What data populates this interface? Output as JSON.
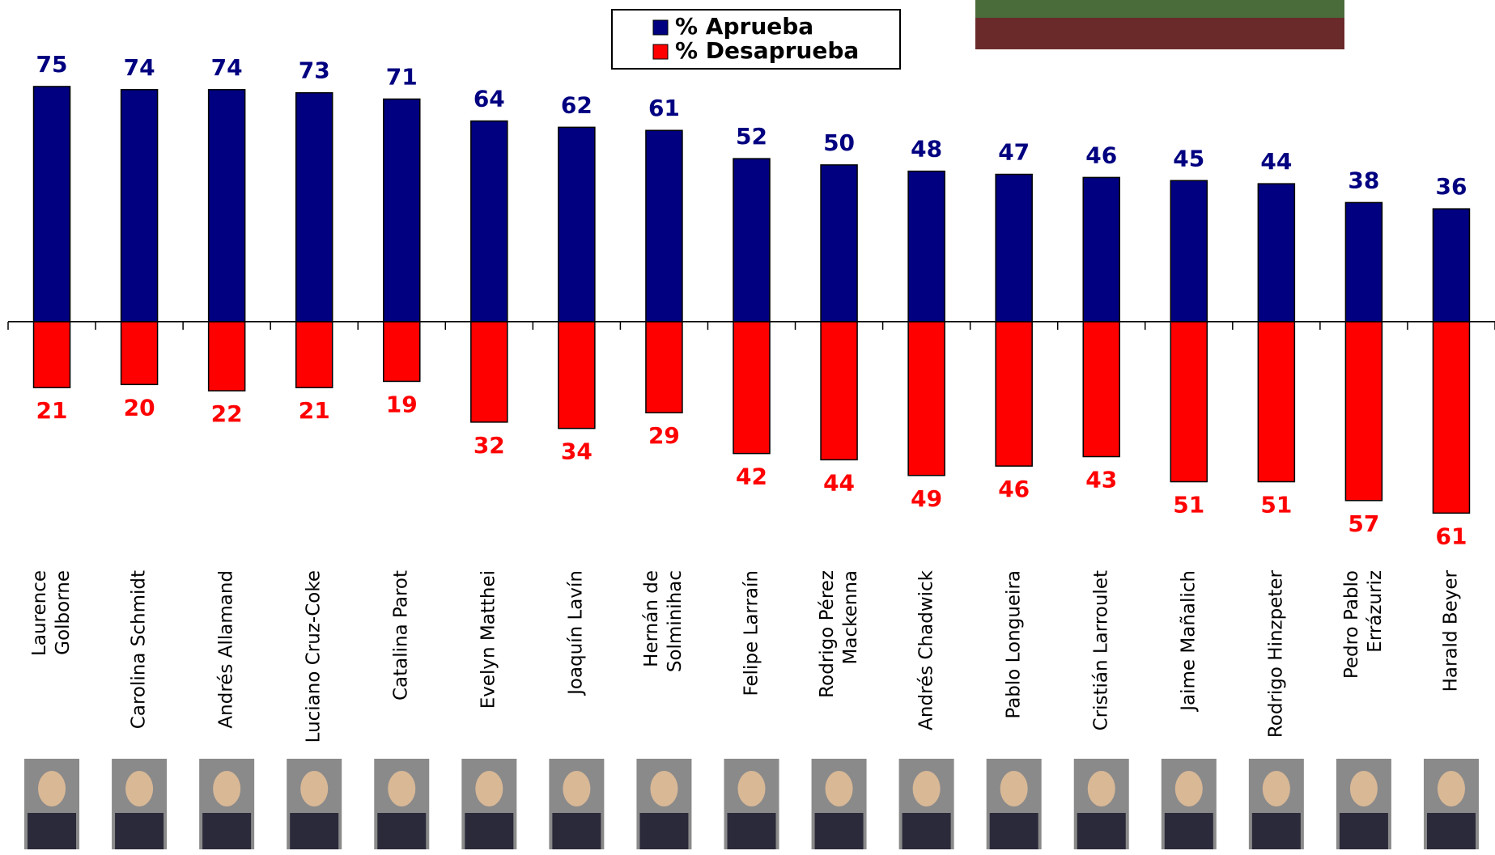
{
  "chart_data": {
    "type": "bar",
    "stacking": "diverging",
    "categories": [
      "Laurence\nGolborne",
      "Carolina Schmidt",
      "Andrés Allamand",
      "Luciano Cruz-Coke",
      "Catalina Parot",
      "Evelyn Matthei",
      "Joaquín Lavín",
      "Hernán de\nSolminihac",
      "Felipe Larraín",
      "Rodrigo Pérez\nMackenna",
      "Andrés Chadwick",
      "Pablo Longueira",
      "Cristián Larroulet",
      "Jaime Mañalich",
      "Rodrigo Hinzpeter",
      "Pedro Pablo\nErrázuriz",
      "Harald Beyer"
    ],
    "series": [
      {
        "name": "% Aprueba",
        "color": "#000080",
        "values": [
          75,
          74,
          74,
          73,
          71,
          64,
          62,
          61,
          52,
          50,
          48,
          47,
          46,
          45,
          44,
          38,
          36
        ]
      },
      {
        "name": "% Desaprueba",
        "color": "#ff0000",
        "values": [
          21,
          20,
          22,
          21,
          19,
          32,
          34,
          29,
          42,
          44,
          49,
          46,
          43,
          51,
          51,
          57,
          61
        ]
      }
    ],
    "ylim": [
      -80,
      100
    ],
    "legend": "top"
  }
}
